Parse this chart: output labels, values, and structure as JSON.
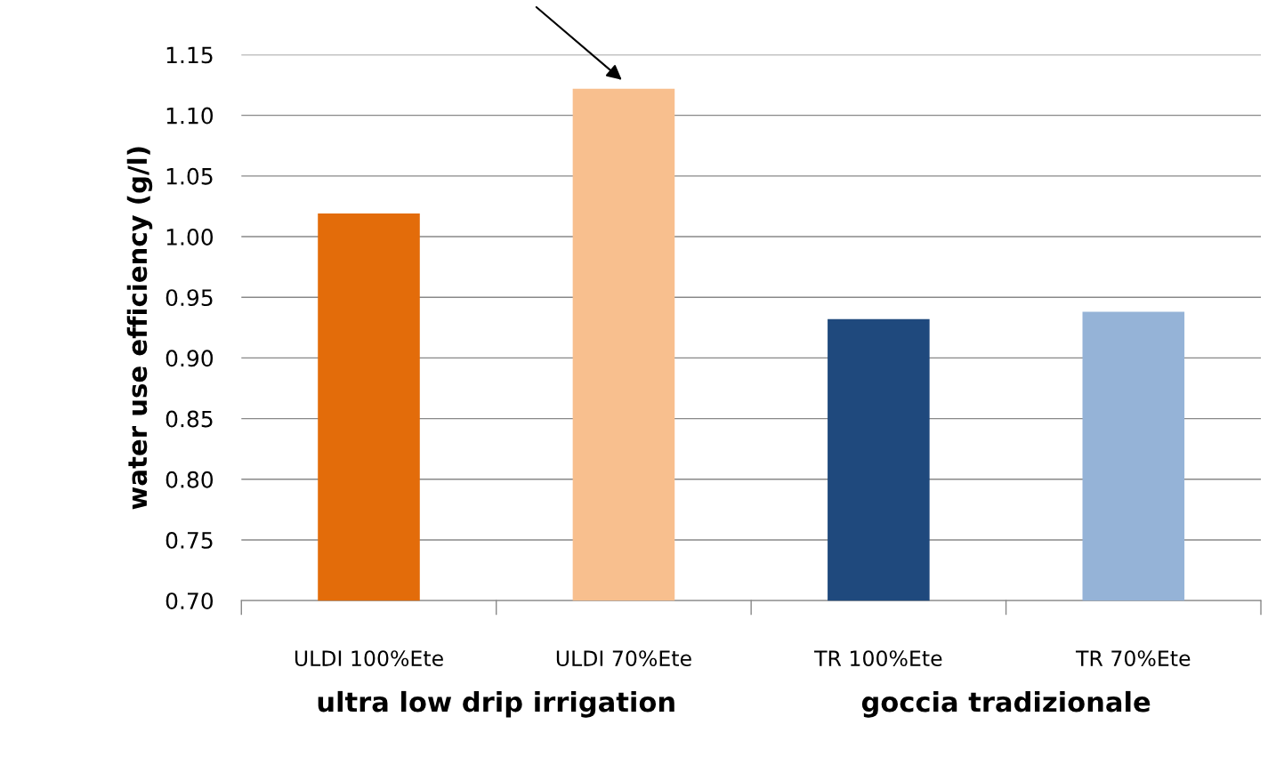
{
  "chart_data": {
    "type": "bar",
    "categories": [
      "ULDI 100%Ete",
      "ULDI 70%Ete",
      "TR 100%Ete",
      "TR 70%Ete"
    ],
    "values": [
      1.019,
      1.122,
      0.932,
      0.938
    ],
    "colors": [
      "#e36c0a",
      "#f8bf8e",
      "#1f497d",
      "#95b3d7"
    ],
    "ylabel": "water use efficiency (g/l)",
    "ylim": [
      0.7,
      1.15
    ],
    "yticks": [
      {
        "value": 0.7,
        "label": "0.70"
      },
      {
        "value": 0.75,
        "label": "0.75"
      },
      {
        "value": 0.8,
        "label": "0.80"
      },
      {
        "value": 0.85,
        "label": "0.85"
      },
      {
        "value": 0.9,
        "label": "0.90"
      },
      {
        "value": 0.95,
        "label": "0.95"
      },
      {
        "value": 1.0,
        "label": "1.00"
      },
      {
        "value": 1.05,
        "label": "1.05"
      },
      {
        "value": 1.1,
        "label": "1.10"
      },
      {
        "value": 1.15,
        "label": "1.15"
      }
    ],
    "grid": "y",
    "annotations": [
      "ultra low drip irrigation",
      "goccia tradizionale"
    ]
  }
}
